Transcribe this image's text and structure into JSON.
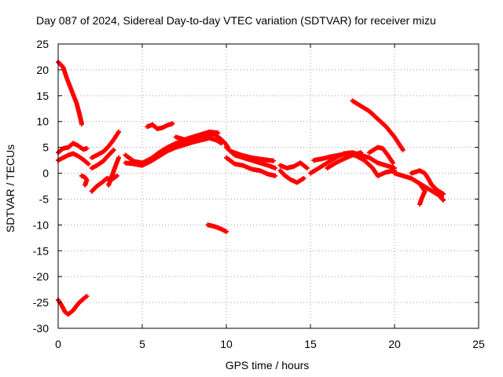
{
  "chart_data": {
    "type": "scatter",
    "title": "Day 087 of 2024, Sidereal Day-to-day VTEC variation (SDTVAR) for receiver mizu",
    "xlabel": "GPS time / hours",
    "ylabel": "SDTVAR / TECUs",
    "xlim": [
      0,
      25
    ],
    "ylim": [
      -30,
      25
    ],
    "xticks": [
      0,
      5,
      10,
      15,
      20,
      25
    ],
    "yticks": [
      25,
      20,
      15,
      10,
      5,
      0,
      -5,
      -10,
      -15,
      -20,
      -25,
      -30
    ],
    "grid": true,
    "marker": "plus",
    "color": "#ff0000",
    "series": [
      {
        "name": "arc-1",
        "points": [
          [
            0.0,
            21.5
          ],
          [
            0.3,
            20.5
          ],
          [
            0.5,
            18.5
          ],
          [
            0.8,
            16
          ],
          [
            1.1,
            13.5
          ],
          [
            1.3,
            11
          ],
          [
            1.4,
            9.5
          ]
        ]
      },
      {
        "name": "arc-2",
        "points": [
          [
            0.0,
            4.0
          ],
          [
            0.3,
            4.8
          ],
          [
            0.6,
            5.0
          ],
          [
            0.9,
            5.8
          ],
          [
            1.2,
            5.3
          ],
          [
            1.5,
            4.6
          ],
          [
            1.7,
            4.8
          ]
        ]
      },
      {
        "name": "arc-3",
        "points": [
          [
            0.0,
            2.5
          ],
          [
            0.3,
            3.0
          ],
          [
            0.6,
            3.5
          ],
          [
            0.9,
            3.8
          ],
          [
            1.2,
            3.3
          ],
          [
            1.5,
            2.6
          ],
          [
            1.8,
            1.8
          ]
        ]
      },
      {
        "name": "arc-4",
        "points": [
          [
            1.4,
            -0.5
          ],
          [
            1.6,
            -0.8
          ],
          [
            1.7,
            -1.3
          ],
          [
            1.6,
            -2.3
          ]
        ]
      },
      {
        "name": "arc-5",
        "points": [
          [
            2.0,
            -3.5
          ],
          [
            2.3,
            -2.5
          ],
          [
            2.6,
            -1.8
          ],
          [
            2.9,
            -1.0
          ],
          [
            3.2,
            -1.2
          ],
          [
            3.5,
            -0.5
          ]
        ]
      },
      {
        "name": "arc-6",
        "points": [
          [
            2.0,
            3.0
          ],
          [
            2.3,
            3.5
          ],
          [
            2.7,
            4.2
          ],
          [
            3.0,
            5.2
          ],
          [
            3.3,
            6.5
          ],
          [
            3.6,
            8.0
          ]
        ]
      },
      {
        "name": "arc-7",
        "points": [
          [
            2.0,
            1.0
          ],
          [
            2.3,
            1.5
          ],
          [
            2.7,
            2.4
          ],
          [
            3.0,
            3.5
          ],
          [
            3.3,
            4.5
          ]
        ]
      },
      {
        "name": "arc-8",
        "points": [
          [
            3.0,
            -2.3
          ],
          [
            3.2,
            -0.5
          ],
          [
            3.4,
            1.3
          ],
          [
            3.6,
            3.0
          ]
        ]
      },
      {
        "name": "arc-9",
        "points": [
          [
            4.0,
            3.5
          ],
          [
            4.5,
            2.3
          ],
          [
            5.0,
            2.0
          ],
          [
            5.5,
            2.8
          ],
          [
            6.0,
            4.0
          ],
          [
            6.5,
            5.0
          ],
          [
            7.0,
            5.8
          ],
          [
            7.5,
            6.3
          ],
          [
            8.0,
            6.8
          ],
          [
            8.5,
            7.2
          ],
          [
            9.0,
            7.6
          ],
          [
            9.3,
            7.5
          ],
          [
            9.6,
            6.8
          ],
          [
            9.9,
            5.9
          ],
          [
            10.1,
            5.0
          ]
        ]
      },
      {
        "name": "arc-10",
        "points": [
          [
            4.0,
            2.0
          ],
          [
            4.5,
            1.8
          ],
          [
            5.0,
            1.5
          ],
          [
            5.5,
            2.3
          ],
          [
            6.0,
            3.3
          ],
          [
            6.5,
            4.3
          ],
          [
            7.0,
            5.0
          ],
          [
            7.5,
            5.5
          ],
          [
            8.0,
            6.0
          ],
          [
            8.5,
            6.4
          ],
          [
            9.0,
            6.8
          ],
          [
            9.4,
            6.4
          ],
          [
            9.7,
            5.8
          ]
        ]
      },
      {
        "name": "arc-11",
        "points": [
          [
            5.3,
            9.0
          ],
          [
            5.6,
            9.4
          ],
          [
            5.9,
            8.6
          ],
          [
            6.2,
            8.8
          ],
          [
            6.5,
            9.3
          ],
          [
            6.8,
            9.6
          ]
        ]
      },
      {
        "name": "arc-12",
        "points": [
          [
            7.0,
            7.0
          ],
          [
            7.5,
            6.5
          ],
          [
            8.0,
            7.0
          ],
          [
            8.5,
            7.5
          ],
          [
            9.0,
            8.0
          ],
          [
            9.5,
            7.8
          ]
        ]
      },
      {
        "name": "arc-13",
        "points": [
          [
            10.0,
            5.0
          ],
          [
            10.5,
            3.5
          ],
          [
            11.0,
            3.0
          ],
          [
            11.5,
            2.5
          ],
          [
            12.0,
            2.0
          ],
          [
            12.5,
            1.5
          ],
          [
            12.9,
            1.0
          ]
        ]
      },
      {
        "name": "arc-14",
        "points": [
          [
            10.0,
            3.0
          ],
          [
            10.5,
            1.8
          ],
          [
            11.0,
            1.5
          ],
          [
            11.5,
            0.8
          ],
          [
            12.0,
            0.5
          ],
          [
            12.5,
            -0.2
          ],
          [
            12.9,
            -0.5
          ]
        ]
      },
      {
        "name": "arc-15",
        "points": [
          [
            10.3,
            4.2
          ],
          [
            10.9,
            3.5
          ],
          [
            11.5,
            3.0
          ],
          [
            12.1,
            2.7
          ],
          [
            12.8,
            2.4
          ]
        ]
      },
      {
        "name": "arc-16",
        "points": [
          [
            13.2,
            0.5
          ],
          [
            13.5,
            -0.5
          ],
          [
            13.8,
            -1.2
          ],
          [
            14.2,
            -1.8
          ],
          [
            14.6,
            -1.0
          ]
        ]
      },
      {
        "name": "arc-17",
        "points": [
          [
            13.2,
            1.5
          ],
          [
            13.6,
            1.0
          ],
          [
            14.0,
            1.3
          ],
          [
            14.4,
            2.0
          ],
          [
            14.8,
            1.0
          ]
        ]
      },
      {
        "name": "arc-18",
        "points": [
          [
            15.0,
            0.0
          ],
          [
            15.5,
            1.0
          ],
          [
            16.0,
            2.0
          ],
          [
            16.5,
            3.0
          ],
          [
            17.0,
            3.8
          ],
          [
            17.5,
            4.0
          ],
          [
            18.0,
            3.5
          ],
          [
            18.5,
            3.0
          ],
          [
            19.0,
            2.0
          ],
          [
            19.5,
            1.5
          ],
          [
            20.0,
            1.0
          ]
        ]
      },
      {
        "name": "arc-19",
        "points": [
          [
            15.2,
            2.5
          ],
          [
            15.7,
            2.8
          ],
          [
            16.2,
            3.2
          ],
          [
            16.7,
            3.5
          ],
          [
            17.2,
            3.8
          ],
          [
            17.7,
            3.4
          ],
          [
            18.2,
            2.5
          ],
          [
            18.7,
            1.0
          ],
          [
            19.0,
            -0.5
          ],
          [
            19.5,
            0.2
          ],
          [
            20.0,
            0.5
          ]
        ]
      },
      {
        "name": "arc-20",
        "points": [
          [
            16.0,
            1.0
          ],
          [
            16.5,
            2.0
          ],
          [
            17.0,
            2.8
          ],
          [
            17.5,
            3.5
          ],
          [
            18.0,
            4.0
          ]
        ]
      },
      {
        "name": "arc-21",
        "points": [
          [
            17.5,
            14.0
          ],
          [
            18.0,
            13.0
          ],
          [
            18.5,
            12.0
          ],
          [
            19.0,
            10.5
          ],
          [
            19.5,
            9.0
          ],
          [
            20.0,
            7.0
          ],
          [
            20.5,
            4.5
          ]
        ]
      },
      {
        "name": "arc-22",
        "points": [
          [
            18.5,
            4.0
          ],
          [
            19.0,
            5.0
          ],
          [
            19.3,
            4.8
          ],
          [
            19.6,
            3.5
          ],
          [
            19.9,
            2.0
          ]
        ]
      },
      {
        "name": "arc-23",
        "points": [
          [
            20.0,
            0.0
          ],
          [
            20.5,
            -0.5
          ],
          [
            21.0,
            -1.0
          ],
          [
            21.5,
            -2.0
          ],
          [
            22.0,
            -3.0
          ],
          [
            22.5,
            -4.0
          ],
          [
            22.8,
            -4.5
          ]
        ]
      },
      {
        "name": "arc-24",
        "points": [
          [
            21.0,
            0.0
          ],
          [
            21.5,
            0.5
          ],
          [
            21.8,
            0.0
          ],
          [
            22.0,
            -1.0
          ],
          [
            22.2,
            -2.2
          ],
          [
            22.5,
            -3.2
          ],
          [
            22.9,
            -4.0
          ]
        ]
      },
      {
        "name": "arc-25",
        "points": [
          [
            21.5,
            -2.0
          ],
          [
            21.8,
            -3.5
          ],
          [
            21.6,
            -5.0
          ],
          [
            21.5,
            -6.0
          ]
        ]
      },
      {
        "name": "arc-26",
        "points": [
          [
            22.5,
            -3.5
          ],
          [
            22.7,
            -4.5
          ],
          [
            22.9,
            -5.2
          ]
        ]
      },
      {
        "name": "arc-27",
        "points": [
          [
            8.9,
            -10.0
          ],
          [
            9.3,
            -10.3
          ],
          [
            9.7,
            -10.8
          ],
          [
            10.0,
            -11.3
          ]
        ]
      },
      {
        "name": "arc-28",
        "points": [
          [
            0.0,
            -24.5
          ],
          [
            0.2,
            -25.5
          ],
          [
            0.4,
            -26.8
          ],
          [
            0.6,
            -27.3
          ],
          [
            0.9,
            -26.5
          ],
          [
            1.2,
            -25.2
          ],
          [
            1.5,
            -24.3
          ],
          [
            1.7,
            -23.8
          ]
        ]
      }
    ]
  }
}
